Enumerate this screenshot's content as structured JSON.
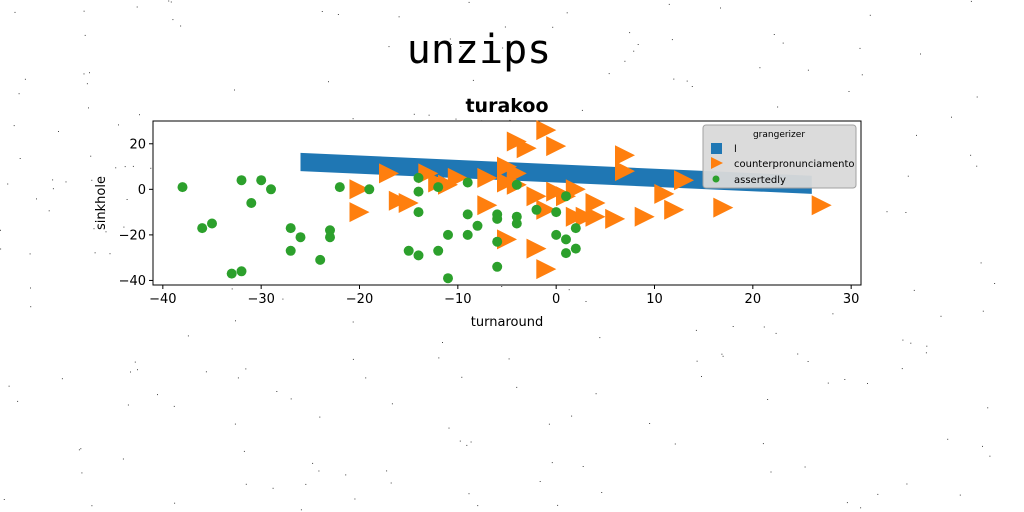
{
  "chart_data": {
    "type": "scatter",
    "suptitle": "unzips",
    "title": "turakoo",
    "xlabel": "turnaround",
    "ylabel": "sinkhole",
    "xlim": [
      -41,
      31
    ],
    "ylim": [
      -42,
      30
    ],
    "xticks": [
      -40,
      -30,
      -20,
      -10,
      0,
      10,
      20,
      30
    ],
    "yticks": [
      -40,
      -20,
      0,
      20
    ],
    "grid": false,
    "legend": {
      "title": "grangerizer",
      "placement": "upper-right",
      "entries": [
        {
          "label": "l",
          "marker": "square",
          "color": "#1f77b4"
        },
        {
          "label": "counterpronunciamento",
          "marker": "triangle-right",
          "color": "#ff7f0e"
        },
        {
          "label": "assertedly",
          "marker": "circle",
          "color": "#2ca02c"
        }
      ]
    },
    "series": [
      {
        "label": "l",
        "kind": "band",
        "color": "#1f77b4",
        "x": [
          -26,
          26
        ],
        "y_top": [
          16,
          6
        ],
        "y_bottom": [
          8,
          -2
        ]
      },
      {
        "label": "counterpronunciamento",
        "kind": "scatter",
        "marker": "triangle-right",
        "color": "#ff7f0e",
        "points": [
          [
            -4,
            21
          ],
          [
            -3,
            18
          ],
          [
            -1,
            26
          ],
          [
            0,
            19
          ],
          [
            -5,
            10
          ],
          [
            -4,
            7
          ],
          [
            7,
            15
          ],
          [
            7,
            8
          ],
          [
            -20,
            0
          ],
          [
            -20,
            -10
          ],
          [
            -17,
            7
          ],
          [
            -16,
            -5
          ],
          [
            -15,
            -6
          ],
          [
            -13,
            7
          ],
          [
            -12,
            3
          ],
          [
            -11,
            2
          ],
          [
            -10,
            5
          ],
          [
            -7,
            5
          ],
          [
            -7,
            -7
          ],
          [
            -5,
            3
          ],
          [
            -5,
            -22
          ],
          [
            -4,
            2
          ],
          [
            -2,
            -3
          ],
          [
            -2,
            -26
          ],
          [
            -1,
            -35
          ],
          [
            -1,
            -9
          ],
          [
            0,
            -1
          ],
          [
            1,
            -3
          ],
          [
            2,
            0
          ],
          [
            2,
            -12
          ],
          [
            3,
            -12
          ],
          [
            4,
            -6
          ],
          [
            4,
            -12
          ],
          [
            6,
            -13
          ],
          [
            9,
            -12
          ],
          [
            11,
            -2
          ],
          [
            12,
            -9
          ],
          [
            13,
            4
          ],
          [
            17,
            -8
          ],
          [
            27,
            -7
          ]
        ]
      },
      {
        "label": "assertedly",
        "kind": "scatter",
        "marker": "circle",
        "color": "#2ca02c",
        "points": [
          [
            -38,
            1
          ],
          [
            -36,
            -17
          ],
          [
            -35,
            -15
          ],
          [
            -33,
            -37
          ],
          [
            -32,
            4
          ],
          [
            -32,
            -36
          ],
          [
            -31,
            -6
          ],
          [
            -30,
            4
          ],
          [
            -29,
            0
          ],
          [
            -27,
            -17
          ],
          [
            -27,
            -27
          ],
          [
            -26,
            -21
          ],
          [
            -23,
            -18
          ],
          [
            -23,
            -21
          ],
          [
            -24,
            -31
          ],
          [
            -22,
            1
          ],
          [
            -19,
            0
          ],
          [
            -14,
            5
          ],
          [
            -14,
            -1
          ],
          [
            -14,
            -10
          ],
          [
            -14,
            -29
          ],
          [
            -15,
            -27
          ],
          [
            -12,
            1
          ],
          [
            -11,
            -20
          ],
          [
            -11,
            -39
          ],
          [
            -12,
            -27
          ],
          [
            -9,
            3
          ],
          [
            -9,
            -11
          ],
          [
            -9,
            -20
          ],
          [
            -8,
            -16
          ],
          [
            -6,
            -11
          ],
          [
            -6,
            -13
          ],
          [
            -6,
            -23
          ],
          [
            -6,
            -34
          ],
          [
            -4,
            2
          ],
          [
            -4,
            -12
          ],
          [
            -4,
            -15
          ],
          [
            -2,
            -9
          ],
          [
            0,
            -10
          ],
          [
            0,
            -20
          ],
          [
            1,
            -3
          ],
          [
            1,
            -22
          ],
          [
            1,
            -28
          ],
          [
            2,
            -17
          ],
          [
            2,
            -26
          ]
        ]
      }
    ]
  }
}
